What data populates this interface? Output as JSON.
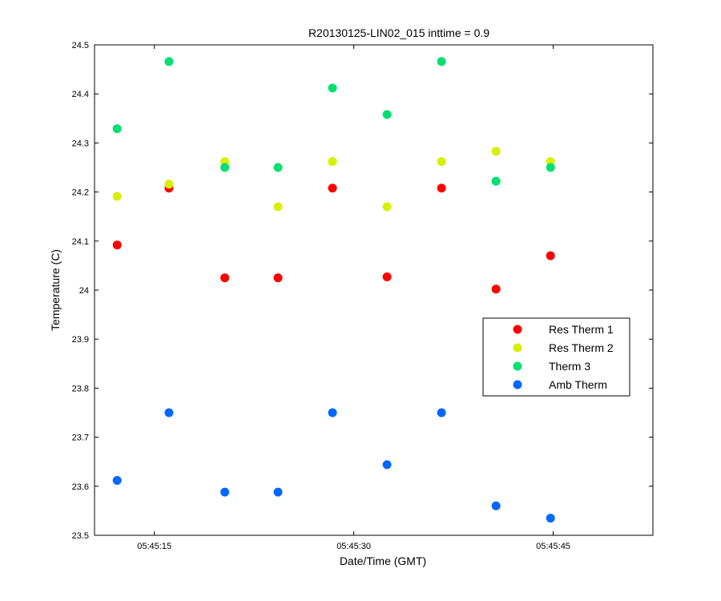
{
  "chart_data": {
    "type": "scatter",
    "title": "R20130125-LIN02_015 inttime = 0.9",
    "xlabel": "Date/Time (GMT)",
    "ylabel": "Temperature (C)",
    "xlim": [
      "05:45:10.5",
      "05:45:52.5"
    ],
    "ylim": [
      23.5,
      24.5
    ],
    "x_ticks": [
      "05:45:15",
      "05:45:30",
      "05:45:45"
    ],
    "y_ticks": [
      "23.5",
      "23.6",
      "23.7",
      "23.8",
      "23.9",
      "24",
      "24.1",
      "24.2",
      "24.3",
      "24.4",
      "24.5"
    ],
    "grid": false,
    "legend_position": "right",
    "series": [
      {
        "name": "Res Therm 1",
        "color": "#ff0000",
        "x": [
          "05:45:12.2",
          "05:45:16.1",
          "05:45:20.3",
          "05:45:24.3",
          "05:45:28.4",
          "05:45:32.5",
          "05:45:36.6",
          "05:45:40.7",
          "05:45:44.8"
        ],
        "y": [
          24.092,
          24.208,
          24.025,
          24.025,
          24.208,
          24.027,
          24.208,
          24.002,
          24.07
        ]
      },
      {
        "name": "Res Therm 2",
        "color": "#d8f000",
        "x": [
          "05:45:12.2",
          "05:45:16.1",
          "05:45:20.3",
          "05:45:24.3",
          "05:45:28.4",
          "05:45:32.5",
          "05:45:36.6",
          "05:45:40.7",
          "05:45:44.8"
        ],
        "y": [
          24.191,
          24.216,
          24.262,
          24.17,
          24.262,
          24.17,
          24.262,
          24.283,
          24.262
        ]
      },
      {
        "name": "Therm 3",
        "color": "#00e070",
        "x": [
          "05:45:12.2",
          "05:45:16.1",
          "05:45:20.3",
          "05:45:24.3",
          "05:45:28.4",
          "05:45:32.5",
          "05:45:36.6",
          "05:45:40.7",
          "05:45:44.8"
        ],
        "y": [
          24.329,
          24.466,
          24.25,
          24.25,
          24.412,
          24.358,
          24.466,
          24.222,
          24.25
        ]
      },
      {
        "name": "Amb Therm",
        "color": "#0068ff",
        "x": [
          "05:45:12.2",
          "05:45:16.1",
          "05:45:20.3",
          "05:45:24.3",
          "05:45:28.4",
          "05:45:32.5",
          "05:45:36.6",
          "05:45:40.7",
          "05:45:44.8"
        ],
        "y": [
          23.612,
          23.75,
          23.588,
          23.588,
          23.75,
          23.644,
          23.75,
          23.56,
          23.535
        ]
      }
    ]
  }
}
